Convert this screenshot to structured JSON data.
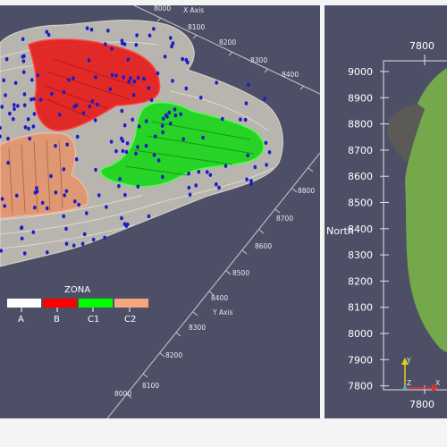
{
  "left_view": {
    "x_axis": {
      "title": "X Axis",
      "ticks": [
        "8000",
        "8100",
        "8200",
        "8300",
        "8400"
      ]
    },
    "y_axis": {
      "title": "Y Axis",
      "ticks_right": [
        "8800",
        "8700",
        "8600",
        "8500",
        "8400",
        "8300",
        "8200",
        "8100",
        "8000"
      ]
    },
    "legend": {
      "title": "ZONA",
      "items": [
        {
          "label": "A",
          "color": "#ffffff"
        },
        {
          "label": "B",
          "color": "#ff0000"
        },
        {
          "label": "C1",
          "color": "#00ff00"
        },
        {
          "label": "C2",
          "color": "#f4a77e"
        }
      ]
    }
  },
  "right_view": {
    "top_tick": "7800",
    "bottom_tick": "7800",
    "north_label": "North",
    "north_ticks": [
      "9000",
      "8900",
      "8800",
      "8700",
      "8600",
      "8500",
      "8400",
      "8300",
      "8200",
      "8100",
      "8000",
      "7900",
      "7800"
    ],
    "orientation": {
      "y": "Y",
      "z": "Z",
      "x": "X"
    }
  }
}
